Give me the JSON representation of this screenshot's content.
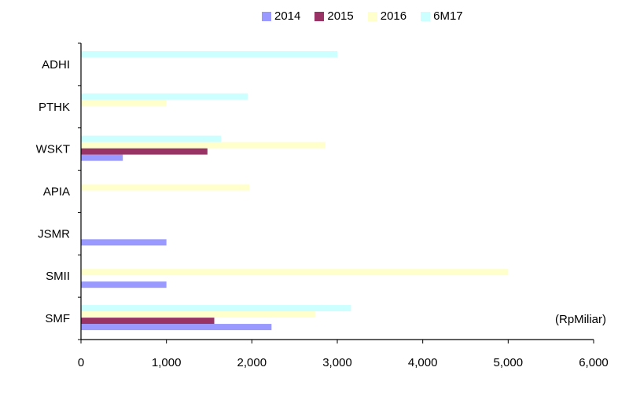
{
  "chart_data": {
    "type": "bar",
    "orientation": "horizontal",
    "categories": [
      "ADHI",
      "PTHK",
      "WSKT",
      "APIA",
      "JSMR",
      "SMII",
      "SMF"
    ],
    "series": [
      {
        "name": "2014",
        "color": "#9999ff",
        "values": [
          null,
          null,
          490,
          null,
          1000,
          1000,
          2230
        ]
      },
      {
        "name": "2015",
        "color": "#993366",
        "values": [
          null,
          null,
          1480,
          null,
          null,
          null,
          1560
        ]
      },
      {
        "name": "2016",
        "color": "#ffffcc",
        "values": [
          null,
          1000,
          2860,
          1970,
          null,
          5000,
          2740
        ]
      },
      {
        "name": "6M17",
        "color": "#ccffff",
        "values": [
          3000,
          1950,
          1640,
          null,
          null,
          null,
          3160
        ]
      }
    ],
    "xlim": [
      0,
      6000
    ],
    "xticks": [
      "0",
      "1,000",
      "2,000",
      "3,000",
      "4,000",
      "5,000",
      "6,000"
    ],
    "xtick_values": [
      0,
      1000,
      2000,
      3000,
      4000,
      5000,
      6000
    ],
    "unit_label": "(RpMiliar)",
    "legend_position": "top",
    "grid": false
  }
}
